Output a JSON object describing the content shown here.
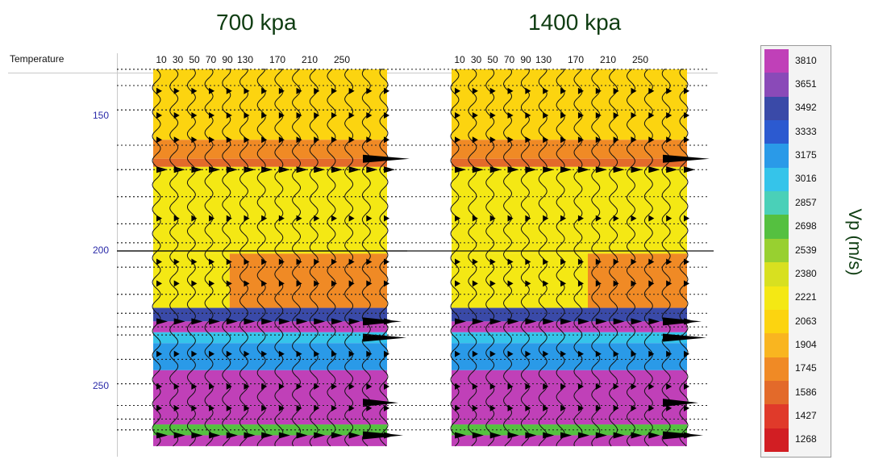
{
  "chart_data": {
    "type": "heatmap",
    "y_axis_label": "Temperature",
    "y_ticks": [
      150,
      200,
      250
    ],
    "y_range": [
      130,
      272
    ],
    "color_scale": {
      "label": "Vp (m/s)",
      "values": [
        3810,
        3651,
        3492,
        3333,
        3175,
        3016,
        2857,
        2698,
        2539,
        2380,
        2221,
        2063,
        1904,
        1745,
        1586,
        1427,
        1268
      ],
      "colors": [
        "#c040b8",
        "#8a4ab8",
        "#3a4aa8",
        "#2c5ad0",
        "#2a9ae8",
        "#35c4ea",
        "#4ad0b8",
        "#55c040",
        "#98d030",
        "#d8e020",
        "#f4e814",
        "#fcd410",
        "#f9b520",
        "#f08a25",
        "#e36a2a",
        "#e03a2a",
        "#d21e23"
      ]
    },
    "panels": [
      {
        "title": "700 kpa",
        "x_ticks": [
          "10",
          "30",
          "50",
          "70",
          "90",
          "130",
          "170",
          "210",
          "250"
        ],
        "layers": [
          {
            "from": 133,
            "to": 159,
            "vp": 2063
          },
          {
            "from": 159,
            "to": 166,
            "vp": 1745
          },
          {
            "from": 166,
            "to": 169,
            "vp": 1586
          },
          {
            "from": 169,
            "to": 201,
            "vp": 2221
          },
          {
            "from": 201,
            "to": 221,
            "vp": 2221,
            "vp_right": 1745,
            "switch_x": 95
          },
          {
            "from": 221,
            "to": 226,
            "vp": 3492
          },
          {
            "from": 226,
            "to": 230,
            "vp": 3810
          },
          {
            "from": 230,
            "to": 234,
            "vp": 3016
          },
          {
            "from": 234,
            "to": 244,
            "vp": 3175
          },
          {
            "from": 244,
            "to": 264,
            "vp": 3810
          },
          {
            "from": 264,
            "to": 268,
            "vp": 2698
          },
          {
            "from": 268,
            "to": 272,
            "vp": 3810
          }
        ]
      },
      {
        "title": "1400 kpa",
        "x_ticks": [
          "10",
          "30",
          "50",
          "70",
          "90",
          "130",
          "170",
          "210",
          "250"
        ],
        "layers": [
          {
            "from": 133,
            "to": 159,
            "vp": 2063
          },
          {
            "from": 159,
            "to": 166,
            "vp": 1745
          },
          {
            "from": 166,
            "to": 169,
            "vp": 1586
          },
          {
            "from": 169,
            "to": 201,
            "vp": 2221
          },
          {
            "from": 201,
            "to": 221,
            "vp": 2221,
            "vp_right": 1745,
            "switch_x": 185
          },
          {
            "from": 221,
            "to": 226,
            "vp": 3492
          },
          {
            "from": 226,
            "to": 230,
            "vp": 3810
          },
          {
            "from": 230,
            "to": 234,
            "vp": 3016
          },
          {
            "from": 234,
            "to": 244,
            "vp": 3175
          },
          {
            "from": 244,
            "to": 264,
            "vp": 3810
          },
          {
            "from": 264,
            "to": 268,
            "vp": 2698
          },
          {
            "from": 268,
            "to": 272,
            "vp": 3810
          }
        ]
      }
    ]
  }
}
